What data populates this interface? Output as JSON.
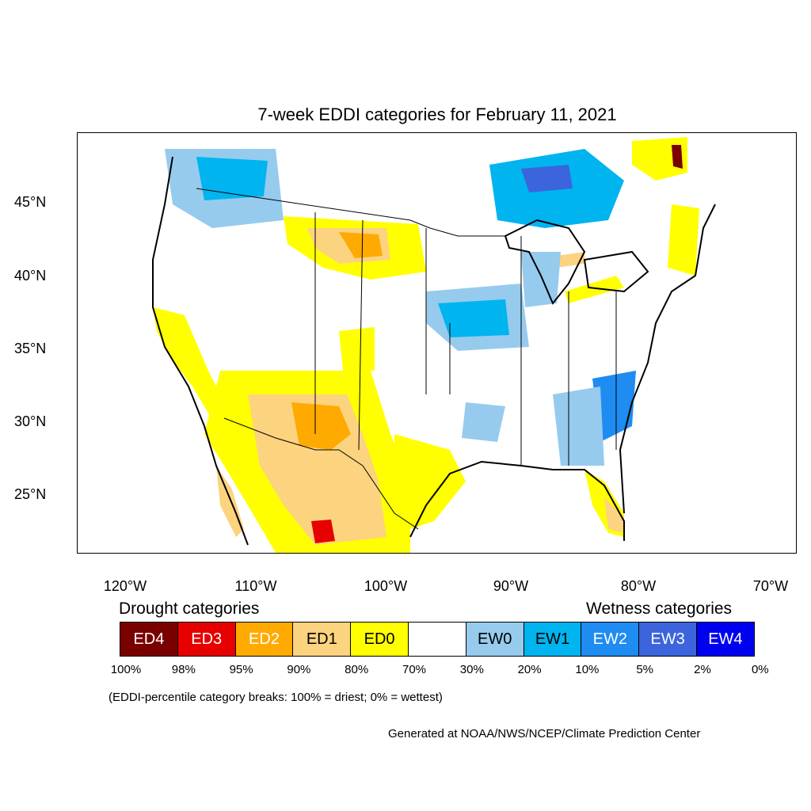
{
  "title": "7-week EDDI categories for February 11, 2021",
  "lat_labels": [
    "45°N",
    "40°N",
    "35°N",
    "30°N",
    "25°N"
  ],
  "lon_labels": [
    "120°W",
    "110°W",
    "100°W",
    "90°W",
    "80°W",
    "70°W"
  ],
  "drought_heading": "Drought categories",
  "wetness_heading": "Wetness categories",
  "legend": [
    {
      "label": "ED4",
      "color": "#7a0000",
      "text_color": "#ffffff"
    },
    {
      "label": "ED3",
      "color": "#e60000",
      "text_color": "#ffffff"
    },
    {
      "label": "ED2",
      "color": "#ffaa00",
      "text_color": "#ffffff"
    },
    {
      "label": "ED1",
      "color": "#fcd37f",
      "text_color": "#000000"
    },
    {
      "label": "ED0",
      "color": "#ffff00",
      "text_color": "#000000"
    },
    {
      "label": "",
      "color": "#ffffff",
      "text_color": "#000000"
    },
    {
      "label": "EW0",
      "color": "#96cbee",
      "text_color": "#000000"
    },
    {
      "label": "EW1",
      "color": "#00b4f0",
      "text_color": "#000000"
    },
    {
      "label": "EW2",
      "color": "#1e8cf0",
      "text_color": "#ffffff"
    },
    {
      "label": "EW3",
      "color": "#3c64dc",
      "text_color": "#ffffff"
    },
    {
      "label": "EW4",
      "color": "#0000f0",
      "text_color": "#ffffff"
    }
  ],
  "percentiles": [
    "100%",
    "98%",
    "95%",
    "90%",
    "80%",
    "70%",
    "30%",
    "20%",
    "10%",
    "5%",
    "2%",
    "0%"
  ],
  "note": "(EDDI-percentile category breaks: 100% = driest; 0% = wettest)",
  "credit": "Generated at NOAA/NWS/NCEP/Climate Prediction Center"
}
